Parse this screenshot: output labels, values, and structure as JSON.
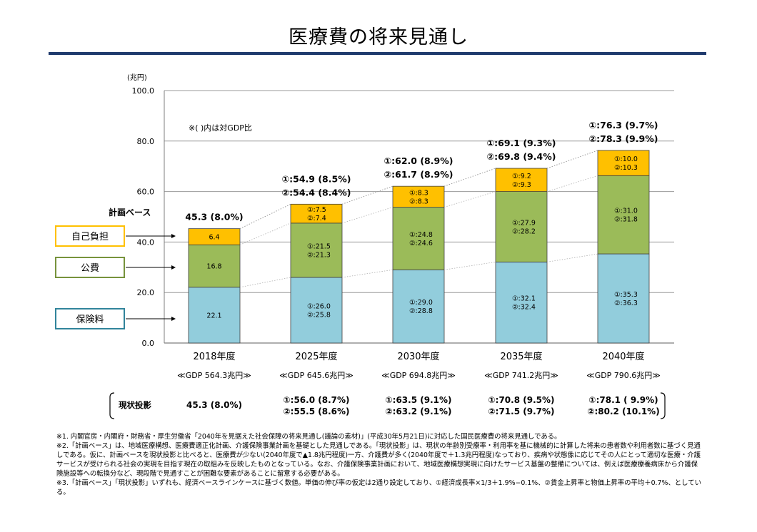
{
  "title": "医療費の将来見通し",
  "chart_data": {
    "type": "bar",
    "stacked": true,
    "unit_label": "(兆円)",
    "ylim": [
      0,
      100
    ],
    "yticks": [
      "0.0",
      "20.0",
      "40.0",
      "60.0",
      "80.0",
      "100.0"
    ],
    "grid": true,
    "note": "※( )内は対GDP比",
    "categories": [
      "2018年度",
      "2025年度",
      "2030年度",
      "2035年度",
      "2040年度"
    ],
    "gdp_labels": [
      "≪GDP 564.3兆円≫",
      "≪GDP 645.6兆円≫",
      "≪GDP 694.8兆円≫",
      "≪GDP 741.2兆円≫",
      "≪GDP 790.6兆円≫"
    ],
    "series": [
      {
        "name": "保険料",
        "color": "#92cddc",
        "border": "#31849b",
        "values": [
          22.1,
          26.0,
          29.0,
          32.1,
          35.3
        ],
        "labels": [
          [
            "22.1"
          ],
          [
            "①:26.0",
            "②:25.8"
          ],
          [
            "①:29.0",
            "②:28.8"
          ],
          [
            "①:32.1",
            "②:32.4"
          ],
          [
            "①:35.3",
            "②:36.3"
          ]
        ]
      },
      {
        "name": "公費",
        "color": "#9bbb59",
        "border": "#77933c",
        "values": [
          16.8,
          21.5,
          24.8,
          27.9,
          31.0
        ],
        "labels": [
          [
            "16.8"
          ],
          [
            "①:21.5",
            "②:21.3"
          ],
          [
            "①:24.8",
            "②:24.6"
          ],
          [
            "①:27.9",
            "②:28.2"
          ],
          [
            "①:31.0",
            "②:31.8"
          ]
        ]
      },
      {
        "name": "自己負担",
        "color": "#ffc000",
        "border": "#e0a800",
        "values": [
          6.4,
          7.5,
          8.3,
          9.2,
          10.0
        ],
        "labels": [
          [
            "6.4"
          ],
          [
            "①:7.5",
            "②:7.4"
          ],
          [
            "①:8.3",
            "②:8.3"
          ],
          [
            "①:9.2",
            "②:9.3"
          ],
          [
            "①:10.0",
            "②:10.3"
          ]
        ]
      }
    ],
    "plan_base_label": "計画ベース",
    "totals": [
      [
        "45.3 (8.0%)"
      ],
      [
        "①:54.9 (8.5%)",
        "②:54.4 (8.4%)"
      ],
      [
        "①:62.0 (8.9%)",
        "②:61.7 (8.9%)"
      ],
      [
        "①:69.1 (9.3%)",
        "②:69.8 (9.4%)"
      ],
      [
        "①:76.3 (9.7%)",
        "②:78.3 (9.9%)"
      ]
    ],
    "current_label": "現状投影",
    "current_projection": [
      [
        "45.3 (8.0%)"
      ],
      [
        "①:56.0 (8.7%)",
        "②:55.5 (8.6%)"
      ],
      [
        "①:63.5 (9.1%)",
        "②:63.2 (9.1%)"
      ],
      [
        "①:70.8 (9.5%)",
        "②:71.5 (9.7%)"
      ],
      [
        "①:78.1 ( 9.9%)",
        "②:80.2 (10.1%)"
      ]
    ]
  },
  "footnotes": [
    "※1. 内閣官房・内閣府・財務省・厚生労働省「2040年を見据えた社会保障の将来見通し(議論の素材)」(平成30年5月21日)に対応した国民医療費の将来見通しである。",
    "※2.「計画ベース」は、地域医療構想、医療費適正化計画、介護保険事業計画を基礎とした見通しである。「現状投影」は、現状の年齢別受療率・利用率を基に機械的に計算した将来の患者数や利用者数に基づく見通しである。仮に、計画ベースを現状投影と比べると、医療費が少ない(2040年度で▲1.8兆円程度)一方、介護費が多く(2040年度で＋1.3兆円程度)なっており、疾病や状態像に応じてその人にとって適切な医療・介護サービスが受けられる社会の実現を目指す現在の取組みを反映したものとなっている。なお、介護保険事業計画において、地域医療構想実現に向けたサービス基盤の整備については、例えば医療療養病床から介護保険施設等への転換分など、現段階で見通すことが困難な要素があることに留意する必要がある。",
    "※3.「計画ベース」「現状投影」いずれも、経済ベースラインケースに基づく数値。単価の伸び率の仮定は2通り設定しており、①経済成長率×1/3＋1.9%−0.1%、②賃金上昇率と物価上昇率の平均＋0.7%、としている。"
  ]
}
